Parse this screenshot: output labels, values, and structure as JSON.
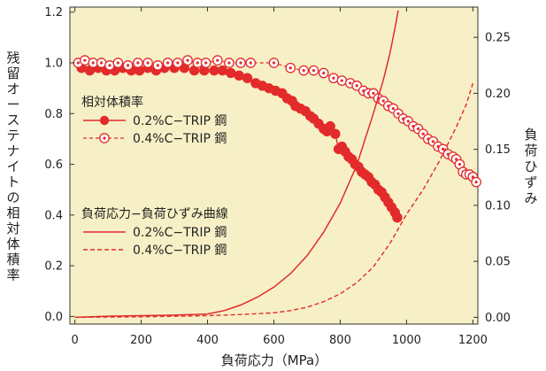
{
  "chart_data": {
    "type": "line",
    "xlabel": "負荷応力（MPa）",
    "ylabel_left": "残留オーステナイトの相対体積率",
    "ylabel_right": "負荷ひずみ",
    "xlim": [
      -15,
      1215
    ],
    "ylim_left": [
      -0.03,
      1.22
    ],
    "ylim_right": [
      -0.006,
      0.277
    ],
    "x_ticks": [
      0,
      200,
      400,
      600,
      800,
      1000,
      1200
    ],
    "y_left_ticks": [
      0.0,
      0.2,
      0.4,
      0.6,
      0.8,
      1.0,
      1.2
    ],
    "y_right_ticks": [
      0.0,
      0.05,
      0.1,
      0.15,
      0.2,
      0.25
    ],
    "x_tick_labels": [
      "0",
      "200",
      "400",
      "600",
      "800",
      "1000",
      "1200"
    ],
    "y_left_tick_labels": [
      "0.0",
      "0.2",
      "0.4",
      "0.6",
      "0.8",
      "1.0",
      "1.2"
    ],
    "y_right_tick_labels": [
      "0.00",
      "0.05",
      "0.10",
      "0.15",
      "0.20",
      "0.25"
    ],
    "background_color": "#f7f0c6",
    "series_color": "#e32b2b",
    "legend_groups": [
      {
        "title": "相対体積率",
        "entries": [
          {
            "label": "0.2%C−TRIP 鋼",
            "style": "filled-circle-solid"
          },
          {
            "label": "0.4%C−TRIP 鋼",
            "style": "open-circle-dashed"
          }
        ]
      },
      {
        "title": "負荷応力−負荷ひずみ曲線",
        "entries": [
          {
            "label": "0.2%C−TRIP 鋼",
            "style": "solid-line"
          },
          {
            "label": "0.4%C−TRIP 鋼",
            "style": "dashed-line"
          }
        ]
      }
    ],
    "series": [
      {
        "name": "0.2%C−TRIP 鋼",
        "axis": "left",
        "marker": "filled-circle",
        "x": [
          20,
          45,
          70,
          95,
          120,
          145,
          170,
          195,
          220,
          245,
          270,
          300,
          330,
          360,
          390,
          420,
          445,
          470,
          495,
          520,
          545,
          565,
          585,
          605,
          625,
          640,
          655,
          665,
          680,
          695,
          710,
          720,
          735,
          750,
          760,
          770,
          785,
          795,
          805,
          815,
          825,
          835,
          845,
          855,
          865,
          875,
          885,
          895,
          905,
          915,
          925,
          935,
          945,
          955,
          965,
          972
        ],
        "y": [
          0.98,
          0.97,
          0.98,
          0.97,
          0.97,
          0.98,
          0.97,
          0.97,
          0.98,
          0.97,
          0.98,
          0.98,
          0.98,
          0.97,
          0.97,
          0.97,
          0.97,
          0.96,
          0.95,
          0.94,
          0.92,
          0.91,
          0.9,
          0.89,
          0.88,
          0.86,
          0.85,
          0.83,
          0.82,
          0.81,
          0.79,
          0.78,
          0.76,
          0.74,
          0.73,
          0.75,
          0.72,
          0.66,
          0.67,
          0.65,
          0.63,
          0.62,
          0.6,
          0.59,
          0.57,
          0.56,
          0.55,
          0.53,
          0.52,
          0.5,
          0.49,
          0.47,
          0.45,
          0.43,
          0.41,
          0.39
        ]
      },
      {
        "name": "0.4%C−TRIP 鋼",
        "axis": "left",
        "marker": "open-circle",
        "x": [
          10,
          30,
          55,
          80,
          105,
          130,
          160,
          190,
          220,
          250,
          280,
          310,
          340,
          370,
          395,
          430,
          465,
          500,
          530,
          600,
          650,
          690,
          720,
          750,
          780,
          805,
          830,
          850,
          870,
          885,
          900,
          915,
          930,
          945,
          960,
          975,
          990,
          1005,
          1020,
          1035,
          1050,
          1065,
          1080,
          1095,
          1110,
          1125,
          1140,
          1150,
          1160,
          1170,
          1180,
          1190,
          1200,
          1210
        ],
        "y": [
          1.0,
          1.01,
          1.0,
          1.0,
          0.99,
          1.0,
          0.99,
          1.0,
          1.0,
          0.99,
          1.0,
          1.0,
          1.01,
          1.0,
          1.0,
          1.01,
          1.0,
          1.0,
          1.0,
          1.0,
          0.98,
          0.97,
          0.97,
          0.96,
          0.94,
          0.93,
          0.92,
          0.91,
          0.89,
          0.88,
          0.88,
          0.86,
          0.85,
          0.83,
          0.82,
          0.8,
          0.78,
          0.77,
          0.75,
          0.74,
          0.72,
          0.7,
          0.69,
          0.67,
          0.66,
          0.64,
          0.63,
          0.62,
          0.6,
          0.57,
          0.56,
          0.56,
          0.55,
          0.53
        ]
      },
      {
        "name": "0.2%C−TRIP 鋼 負荷応力−負荷ひずみ曲線",
        "axis": "right",
        "line": "solid",
        "x": [
          0,
          100,
          200,
          300,
          350,
          400,
          450,
          500,
          550,
          600,
          650,
          700,
          750,
          800,
          850,
          900,
          930,
          950,
          965,
          975
        ],
        "y": [
          0.0,
          0.001,
          0.0015,
          0.002,
          0.0025,
          0.003,
          0.006,
          0.011,
          0.018,
          0.027,
          0.039,
          0.055,
          0.076,
          0.102,
          0.136,
          0.182,
          0.212,
          0.236,
          0.258,
          0.274
        ]
      },
      {
        "name": "0.4%C−TRIP 鋼 負荷応力−負荷ひずみ曲線",
        "axis": "right",
        "line": "dashed",
        "x": [
          0,
          200,
          400,
          500,
          600,
          650,
          700,
          750,
          800,
          850,
          900,
          950,
          1000,
          1050,
          1100,
          1150,
          1180,
          1200
        ],
        "y": [
          0.0,
          0.0005,
          0.0015,
          0.0025,
          0.004,
          0.006,
          0.009,
          0.014,
          0.021,
          0.031,
          0.045,
          0.066,
          0.092,
          0.114,
          0.14,
          0.17,
          0.19,
          0.209
        ]
      }
    ]
  }
}
